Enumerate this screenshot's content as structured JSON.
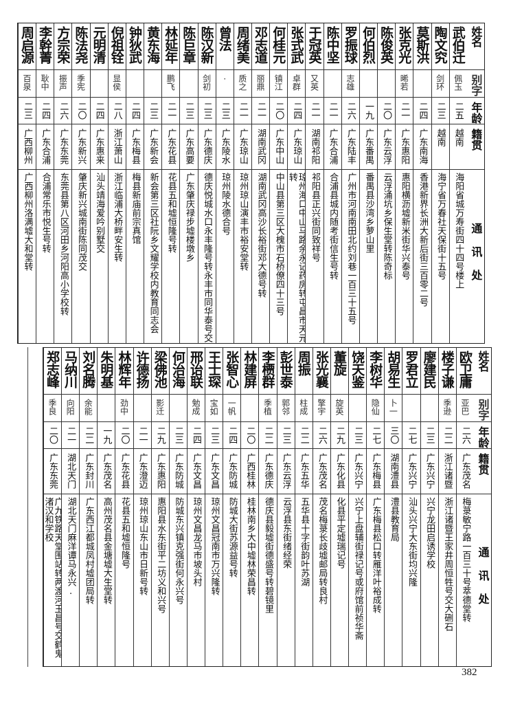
{
  "headers": {
    "name": "姓名",
    "alias": "别字",
    "age": "年龄",
    "origin": "籍贯",
    "address": "通讯处"
  },
  "top_table": [
    {
      "name": "武伯迁",
      "alias": "佩玉",
      "age": "二五",
      "origin": "越南",
      "address": "海阳省城万寿街四十四号楼上"
    },
    {
      "name": "陶文究",
      "alias": "剑环",
      "age": "二三",
      "origin": "越南",
      "address": "海宁省万春社天保街十五号"
    },
    {
      "name": "莫斯洪",
      "alias": "",
      "age": "二四",
      "origin": "广东南海",
      "address": "香港新界长洲大新后街三百零二号"
    },
    {
      "name": "张克光",
      "alias": "晞若",
      "age": "二一",
      "origin": "广东惠阳",
      "address": "惠阳横沥墟新米街华兴泰号"
    },
    {
      "name": "陈俊英",
      "alias": "",
      "age": "二〇",
      "origin": "广东云浮",
      "address": "云浮涌坑乡保生堂转陈奇标"
    },
    {
      "name": "何伯烈",
      "alias": "",
      "age": "一九",
      "origin": "广东番禺",
      "address": "番禺县沙湾乡萝山里"
    },
    {
      "name": "罗振球",
      "alias": "志雄",
      "age": "二六",
      "origin": "广东陆丰",
      "address": "广州市河南南田北约刘巷一百三十五号"
    },
    {
      "name": "陈中坚",
      "alias": "",
      "age": "二一",
      "origin": "广东合浦",
      "address": "合浦县城内随考街信生号转"
    },
    {
      "name": "于冠英",
      "alias": "又英",
      "age": "二一",
      "origin": "湖南祁阳",
      "address": "祁阳县正兴街同致祥号"
    },
    {
      "name": "张式武",
      "alias": "卓群",
      "age": "二四",
      "origin": "广东琼山",
      "address": "琼州海口中山马路余永记药房转屯昌市天元转"
    },
    {
      "name": "何桂元",
      "alias": "镇江",
      "age": "二〇",
      "origin": "广东中山",
      "address": "中山县第三区大槐市石桥僚四十三号"
    },
    {
      "name": "邓志道",
      "alias": "丽鼎",
      "age": "二一",
      "origin": "湖南武冈",
      "address": "湖南武冈高沙长裕街邓大德号转"
    },
    {
      "name": "周绪美",
      "alias": "质之",
      "age": "二一",
      "origin": "广东琼山",
      "address": "琼州琼山演丰市裕安堂转"
    },
    {
      "name": "曾法",
      "alias": "·",
      "age": "二三",
      "origin": "广东陵水",
      "address": "琼州陵水德合号"
    },
    {
      "name": "陈汉新",
      "alias": "剑初",
      "age": "二三",
      "origin": "广东德庆",
      "address": "德庆悦城水口永丰隆号转永丰市同华泰号交"
    },
    {
      "name": "陈巨章",
      "alias": "",
      "age": "二三",
      "origin": "广东高要",
      "address": "广东肇庆禄步墟楼墩乡"
    },
    {
      "name": "林延年",
      "alias": "鹏飞",
      "age": "二一",
      "origin": "广东花县",
      "address": "花县五和墟恒隆号转"
    },
    {
      "name": "黄东海",
      "alias": "",
      "age": "二三",
      "origin": "广东新会",
      "address": "新会第三区社阮乡文耀学校内教育同志会"
    },
    {
      "name": "钟狄武",
      "alias": "",
      "age": "二四",
      "origin": "广东梅县",
      "address": "梅县新庙前宗真馆"
    },
    {
      "name": "倪祖铨",
      "alias": "显侯",
      "age": "二八",
      "origin": "浙江萧山",
      "address": "浙江临浦大桥畔安生转"
    },
    {
      "name": "元明清",
      "alias": "",
      "age": "二四",
      "origin": "广东惠来",
      "address": "汕头靖海爱吟别墅交"
    },
    {
      "name": "陈法尧",
      "alias": "季宪",
      "age": "二〇",
      "origin": "广东新兴",
      "address": "肇庆新兴城南街陈同茂交"
    },
    {
      "name": "方宗荣",
      "alias": "振声",
      "age": "二六",
      "origin": "广东东莞",
      "address": "东莞县第八区河田乡河阳高小学校转"
    },
    {
      "name": "李幹菁",
      "alias": "耿中",
      "age": "二四",
      "origin": "广东合浦",
      "address": "合浦常乐市悦生号转"
    },
    {
      "name": "周启源",
      "alias": "百泉",
      "age": "二三",
      "origin": "广西柳州",
      "address": "广西柳州洛满墟大和堂转"
    }
  ],
  "bottom_table": [
    {
      "name": "欧卫庸",
      "alias": "亚巴",
      "age": "二六",
      "origin": "广东茂名",
      "address": "梅菉敏宁路一百三十号萃德堂转"
    },
    {
      "name": "楼子谦",
      "alias": "季逊",
      "age": "二二",
      "origin": "浙江诸暨",
      "address": "浙江诸暨王家井周恒牲号交大硎石"
    },
    {
      "name": "廖建民",
      "alias": "",
      "age": "二三",
      "origin": "广东兴宁",
      "address": "兴宁龙田启诱学校"
    },
    {
      "name": "罗君立",
      "alias": "",
      "age": "二七",
      "origin": "广东兴宁",
      "address": "汕头兴宁大东街均兴隆"
    },
    {
      "name": "胡易生",
      "alias": "卜一",
      "age": "三〇",
      "origin": "湖南澧县",
      "address": "澧县教育局"
    },
    {
      "name": "李树华",
      "alias": "隐仙",
      "age": "二七",
      "origin": "广东梅县",
      "address": "广东梅县松口转雁洋叶裕成转"
    },
    {
      "name": "饶天鉴",
      "alias": "",
      "age": "二三",
      "origin": "广东兴宁",
      "address": "兴宁上盘辅街禄记号或府馆前祯华斋"
    },
    {
      "name": "董旋",
      "alias": "旋英",
      "age": "二九",
      "origin": "广东化县",
      "address": "化县平定墟瑞记号"
    },
    {
      "name": "张光襄",
      "alias": "擎宇",
      "age": "二六",
      "origin": "广东茂名",
      "address": "茂名梅菉长歧墟邮局转良村"
    },
    {
      "name": "周振",
      "alias": "柱成",
      "age": "二二",
      "origin": "广东五华",
      "address": "五华县十字街韵叶苏湖"
    },
    {
      "name": "彭世泰",
      "alias": "郭邻",
      "age": "二三",
      "origin": "广东云浮",
      "address": "云浮县东街绪经荣"
    },
    {
      "name": "李槚群",
      "alias": "季植",
      "age": "二二",
      "origin": "广东德庆",
      "address": "德庆县毅墟街德盛号转碧镜里"
    },
    {
      "name": "林建屏",
      "alias": "",
      "age": "二〇",
      "origin": "广西桂林",
      "address": "桂林南乡大中墟林荣昌转"
    },
    {
      "name": "张智心",
      "alias": "一帆",
      "age": "二四",
      "origin": "广东防城",
      "address": "防城大街苏源益号转"
    },
    {
      "name": "王士琛",
      "alias": "宝如",
      "age": "二三",
      "origin": "广东文昌",
      "address": "琼州文昌冠南市万兴隆转"
    },
    {
      "name": "邢诒联",
      "alias": "勉成",
      "age": "二四",
      "origin": "广东文昌",
      "address": "琼州文昌龙马市坡头村"
    },
    {
      "name": "何治海",
      "alias": "",
      "age": "二三",
      "origin": "广东防城",
      "address": "防城东兴镇克强街何永兴号"
    },
    {
      "name": "梁佛池",
      "alias": "影迁",
      "age": "二九",
      "origin": "广东惠阳",
      "address": "惠阳县水东街平二坊义和兴号"
    },
    {
      "name": "许德扬",
      "alias": "",
      "age": "二一",
      "origin": "广东澄迈",
      "address": "琼州琼山东山市日新号转"
    },
    {
      "name": "林辉年",
      "alias": "劲中",
      "age": "二〇",
      "origin": "广东花县",
      "address": "花县五和墟恒隆号"
    },
    {
      "name": "朱明基",
      "alias": "",
      "age": "一九",
      "origin": "广东茂名",
      "address": "高州茂名县金塘墟大生堂转"
    },
    {
      "name": "刘名腾",
      "alias": "余能",
      "age": "二二",
      "origin": "广东封川",
      "address": "广东西江都城凤村墟团局转"
    },
    {
      "name": "马纳川",
      "alias": "向阳",
      "age": "二一",
      "origin": "湖北天门",
      "address": "湖北天门麻洋谭马永兴."
    },
    {
      "name": "郑志峰",
      "alias": "季良",
      "age": "二〇",
      "origin": "广东东莞",
      "address": "广九铁路天堂围站转两渡河玉昌号交鹤鬼渚汉和学校"
    }
  ],
  "page_number": "382"
}
